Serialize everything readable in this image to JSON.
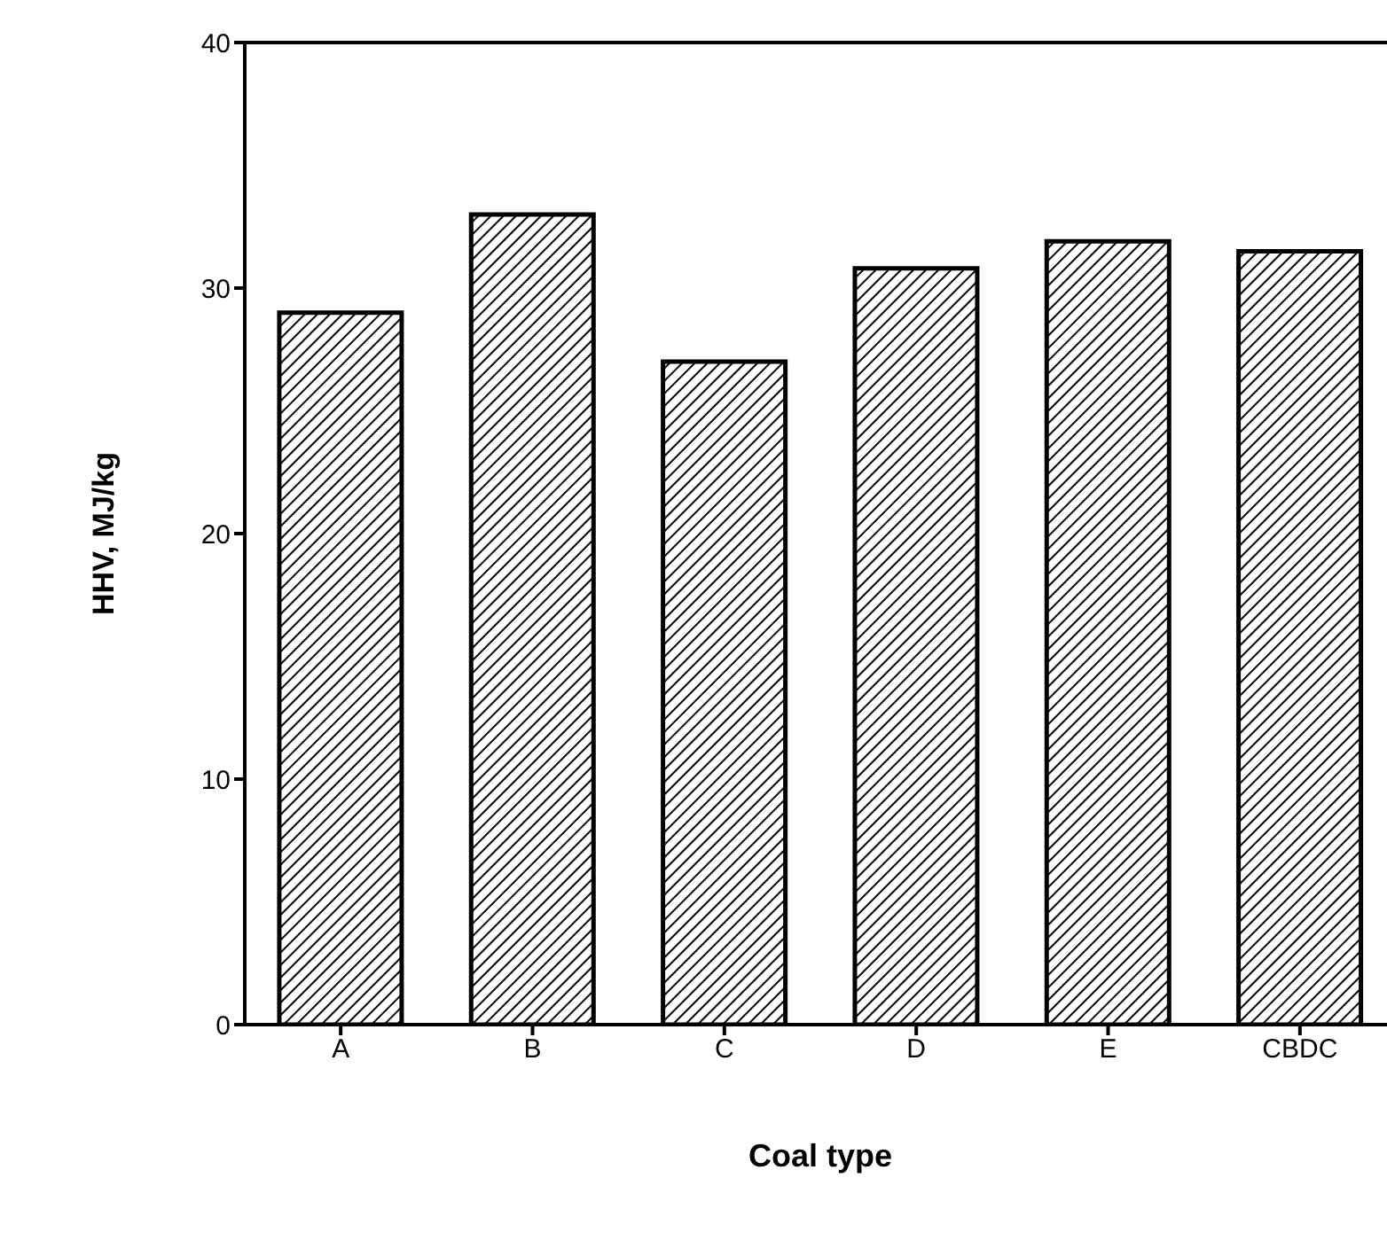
{
  "chart_data": {
    "type": "bar",
    "xlabel": "Coal type",
    "ylabel": "HHV,   MJ/kg",
    "categories": [
      "A",
      "B",
      "C",
      "D",
      "E",
      "CBDC"
    ],
    "values": [
      29,
      33,
      27,
      30.8,
      31.9,
      31.5
    ],
    "color": "#000000",
    "ylim": [
      0,
      40
    ],
    "yticks": [
      0,
      10,
      20,
      30,
      40
    ]
  }
}
